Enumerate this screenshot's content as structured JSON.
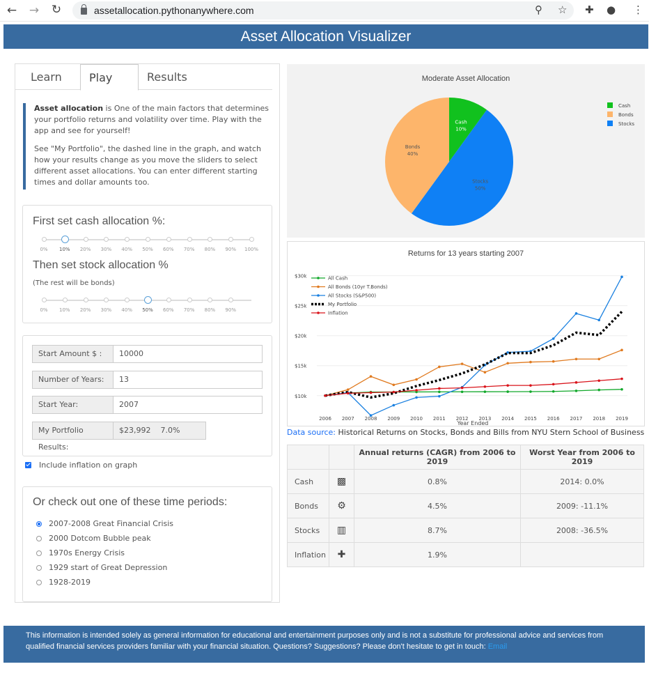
{
  "browser": {
    "url": "assetallocation.pythonanywhere.com"
  },
  "app": {
    "title": "Asset Allocation Visualizer"
  },
  "tabs": [
    {
      "label": "Learn"
    },
    {
      "label": "Play"
    },
    {
      "label": "Results"
    }
  ],
  "blurb": {
    "bold": "Asset allocation",
    "p1": " is One of the main factors that determines your portfolio returns and volatility over time. Play with the app and see for yourself!",
    "p2": "See \"My Portfolio\", the dashed line in the graph, and watch how your results change as you move the sliders to select different asset allocations. You can enter different starting times and dollar amounts too."
  },
  "cash_slider": {
    "title": "First set cash allocation %:",
    "labels": [
      "0%",
      "10%",
      "20%",
      "30%",
      "40%",
      "50%",
      "60%",
      "70%",
      "80%",
      "90%",
      "100%"
    ],
    "selected_index": 1,
    "value": 10
  },
  "stock_slider": {
    "title": "Then set stock allocation %",
    "note": "(The rest will be bonds)",
    "labels": [
      "0%",
      "10%",
      "20%",
      "30%",
      "40%",
      "50%",
      "60%",
      "70%",
      "80%",
      "90%"
    ],
    "selected_index": 5,
    "value": 50
  },
  "form": {
    "start_amount_label": "Start Amount $ :",
    "start_amount": "10000",
    "years_label": "Number of Years:",
    "years": "13",
    "start_year_label": "Start Year:",
    "start_year": "2007",
    "results_label": "My Portfolio Results:",
    "results_value": "$23,992",
    "results_pct": "7.0%"
  },
  "inflation_checkbox": {
    "label": "Include inflation on graph",
    "checked": true
  },
  "periods": {
    "title": "Or check out one of these time periods:",
    "items": [
      {
        "label": "2007-2008 Great Financial Crisis",
        "selected": true
      },
      {
        "label": "2000 Dotcom Bubble peak",
        "selected": false
      },
      {
        "label": "1970s Energy Crisis",
        "selected": false
      },
      {
        "label": "1929 start of Great Depression",
        "selected": false
      },
      {
        "label": "1928-2019",
        "selected": false
      }
    ]
  },
  "chart_data": [
    {
      "type": "pie",
      "title": "Moderate Asset Allocation",
      "labels": [
        "Cash",
        "Stocks",
        "Bonds"
      ],
      "values": [
        10,
        50,
        40
      ],
      "colors": [
        "#11c11e",
        "#0f80f5",
        "#fdb56b"
      ],
      "legend": [
        "Cash",
        "Bonds",
        "Stocks"
      ],
      "legend_colors": [
        "#11c11e",
        "#fdb56b",
        "#0f80f5"
      ],
      "legend_position": "top-right"
    },
    {
      "type": "line",
      "title": "Returns for 13 years starting 2007",
      "xlabel": "Year Ended",
      "x": [
        2006,
        2007,
        2008,
        2009,
        2010,
        2011,
        2012,
        2013,
        2014,
        2015,
        2016,
        2017,
        2018,
        2019
      ],
      "ylim": [
        8000,
        31000
      ],
      "yticks": [
        10000,
        15000,
        20000,
        25000,
        30000
      ],
      "ytick_labels": [
        "$10k",
        "$15k",
        "$20k",
        "$25k",
        "$30k"
      ],
      "legend_position": "top-left",
      "series": [
        {
          "name": "All Cash",
          "color": "#11a82a",
          "dash": false,
          "values": [
            10000,
            10440,
            10600,
            10610,
            10620,
            10630,
            10640,
            10650,
            10660,
            10670,
            10700,
            10800,
            10950,
            11050
          ]
        },
        {
          "name": "All Bonds (10yr T.Bonds)",
          "color": "#e07a1f",
          "dash": false,
          "values": [
            10000,
            11000,
            13200,
            11800,
            12700,
            14800,
            15300,
            13900,
            15400,
            15600,
            15700,
            16100,
            16100,
            17600
          ]
        },
        {
          "name": "All Stocks (S&P500)",
          "color": "#1a80e0",
          "dash": false,
          "values": [
            10000,
            10500,
            6700,
            8400,
            9700,
            9900,
            11400,
            15100,
            17200,
            17400,
            19500,
            23700,
            22600,
            29800
          ]
        },
        {
          "name": "My Portfolio",
          "color": "#000000",
          "dash": true,
          "values": [
            10000,
            10600,
            9700,
            10400,
            11600,
            12600,
            13700,
            15200,
            17100,
            17100,
            18400,
            20500,
            20100,
            24000
          ]
        },
        {
          "name": "Inflation",
          "color": "#d9141b",
          "dash": false,
          "values": [
            10000,
            10400,
            10500,
            10600,
            10900,
            11200,
            11300,
            11500,
            11700,
            11700,
            11900,
            12200,
            12500,
            12800
          ]
        }
      ]
    }
  ],
  "source": {
    "link": "Data source:",
    "text": " Historical Returns on Stocks, Bonds and Bills from NYU Stern School of Business"
  },
  "returns_table": {
    "headers": [
      "",
      "",
      "Annual returns (CAGR) from 2006 to 2019",
      "Worst Year from 2006 to 2019"
    ],
    "rows": [
      {
        "name": "Cash",
        "icon": "money-icon",
        "cagr": "0.8%",
        "worst": "2014: 0.0%"
      },
      {
        "name": "Bonds",
        "icon": "handshake-icon",
        "cagr": "4.5%",
        "worst": "2009: -11.1%"
      },
      {
        "name": "Stocks",
        "icon": "industry-icon",
        "cagr": "8.7%",
        "worst": "2008: -36.5%"
      },
      {
        "name": "Inflation",
        "icon": "ambulance-icon",
        "cagr": "1.9%",
        "worst": ""
      }
    ]
  },
  "footer": {
    "text": "This information is intended solely as general information for educational and entertainment purposes only and is not a substitute for professional advice and services from qualified financial services providers familiar with your financial situation. Questions? Suggestions? Please don't hesitate to get in touch: ",
    "link": "Email"
  }
}
